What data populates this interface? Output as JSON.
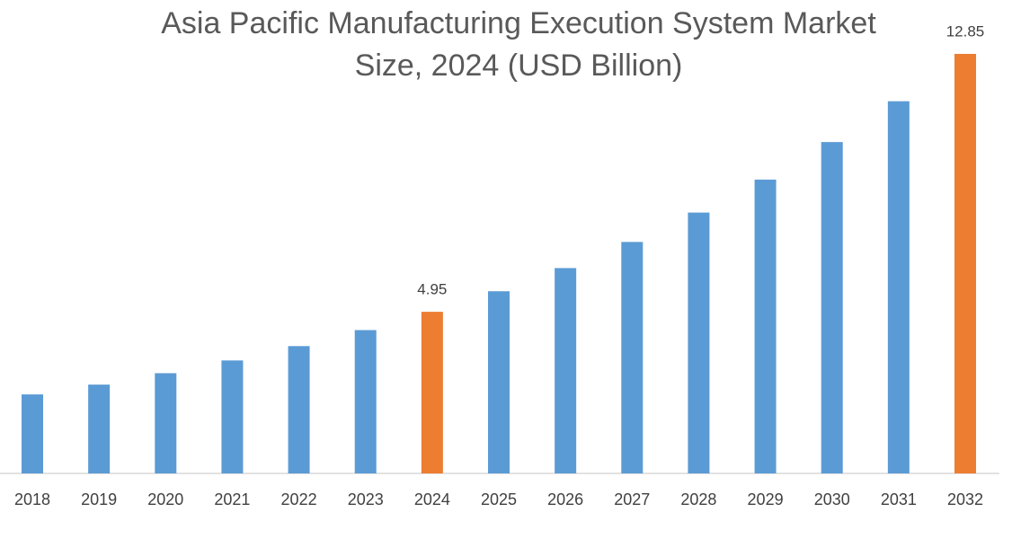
{
  "chart_data": {
    "type": "bar",
    "title": [
      "Asia Pacific Manufacturing Execution System Market",
      "Size, 2024 (USD Billion)"
    ],
    "categories": [
      "2018",
      "2019",
      "2020",
      "2021",
      "2022",
      "2023",
      "2024",
      "2025",
      "2026",
      "2027",
      "2028",
      "2029",
      "2030",
      "2031",
      "2032"
    ],
    "values": [
      2.42,
      2.72,
      3.07,
      3.46,
      3.9,
      4.39,
      4.95,
      5.58,
      6.29,
      7.09,
      7.99,
      9.0,
      10.15,
      11.4,
      12.85
    ],
    "value_labels": [
      null,
      null,
      null,
      null,
      null,
      null,
      "4.95",
      null,
      null,
      null,
      null,
      null,
      null,
      null,
      "12.85"
    ],
    "colors": [
      "#5b9bd5",
      "#5b9bd5",
      "#5b9bd5",
      "#5b9bd5",
      "#5b9bd5",
      "#5b9bd5",
      "#ed7d31",
      "#5b9bd5",
      "#5b9bd5",
      "#5b9bd5",
      "#5b9bd5",
      "#5b9bd5",
      "#5b9bd5",
      "#5b9bd5",
      "#ed7d31"
    ]
  }
}
